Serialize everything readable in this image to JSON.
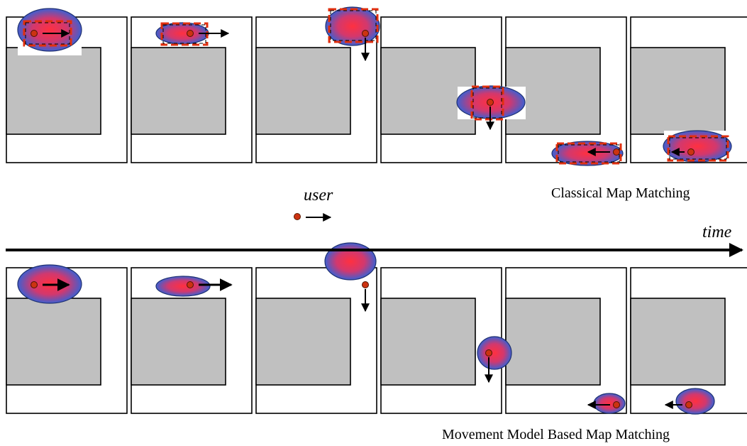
{
  "labels": {
    "legend_user": "user",
    "time_axis": "time",
    "top_caption": "Classical Map Matching",
    "bottom_caption": "Movement Model Based Map Matching"
  },
  "legend": {
    "marker": "user-dot-icon",
    "direction_icon": "arrow-right-icon"
  },
  "rows": [
    {
      "id": "classical",
      "frames": [
        {
          "direction": "right",
          "estimate_box": true
        },
        {
          "direction": "right",
          "estimate_box": true
        },
        {
          "direction": "down",
          "estimate_box": true
        },
        {
          "direction": "down",
          "estimate_box": true
        },
        {
          "direction": "left",
          "estimate_box": true
        },
        {
          "direction": "left",
          "estimate_box": true
        }
      ]
    },
    {
      "id": "movement-model",
      "frames": [
        {
          "direction": "right",
          "estimate_box": false
        },
        {
          "direction": "right",
          "estimate_box": false
        },
        {
          "direction": "down",
          "estimate_box": false
        },
        {
          "direction": "down",
          "estimate_box": false
        },
        {
          "direction": "left",
          "estimate_box": false
        },
        {
          "direction": "left",
          "estimate_box": false
        }
      ]
    }
  ],
  "colors": {
    "building": "#c0c0c0",
    "ellipse_center": "#ff3040",
    "ellipse_edge": "#3f5fd0",
    "estimate_box": "#e03010",
    "user_dot": "#cc3311"
  }
}
